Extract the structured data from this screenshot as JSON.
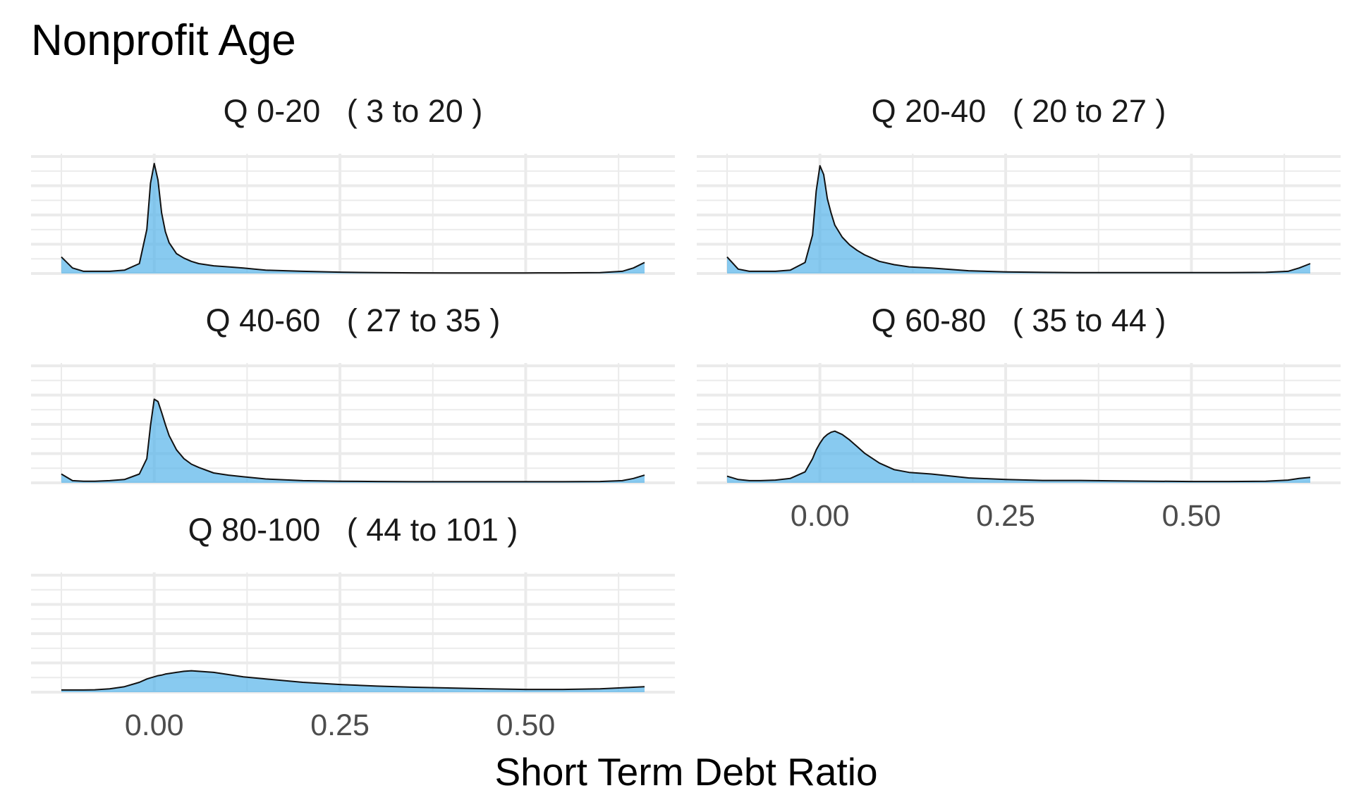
{
  "chart_data": {
    "type": "area",
    "title": "Nonprofit Age",
    "xlabel": "Short Term Debt Ratio",
    "ylabel": "",
    "xlim": [
      -0.125,
      0.66
    ],
    "ylim": [
      0,
      1
    ],
    "x_ticks": [
      "0.00",
      "0.25",
      "0.50"
    ],
    "x_tick_values": [
      0,
      0.25,
      0.5
    ],
    "fill_color": "#56b4e9",
    "line_color": "#111111",
    "grid": true,
    "legend": "none",
    "x": [
      -0.125,
      -0.11,
      -0.095,
      -0.08,
      -0.06,
      -0.04,
      -0.02,
      -0.01,
      -0.005,
      0,
      0.005,
      0.01,
      0.015,
      0.02,
      0.03,
      0.04,
      0.05,
      0.06,
      0.08,
      0.1,
      0.12,
      0.15,
      0.2,
      0.25,
      0.3,
      0.35,
      0.4,
      0.45,
      0.5,
      0.55,
      0.6,
      0.63,
      0.645,
      0.66
    ],
    "series": [
      {
        "name": "Q 0-20   ( 3 to 20 )",
        "values": [
          0.15,
          0.05,
          0.02,
          0.02,
          0.02,
          0.03,
          0.09,
          0.4,
          0.82,
          1.0,
          0.85,
          0.55,
          0.38,
          0.28,
          0.18,
          0.14,
          0.11,
          0.09,
          0.07,
          0.06,
          0.05,
          0.03,
          0.02,
          0.012,
          0.008,
          0.006,
          0.005,
          0.005,
          0.005,
          0.006,
          0.008,
          0.02,
          0.05,
          0.1
        ]
      },
      {
        "name": "Q 20-40   ( 20 to 27 )",
        "values": [
          0.15,
          0.04,
          0.02,
          0.02,
          0.02,
          0.03,
          0.1,
          0.35,
          0.75,
          0.98,
          0.9,
          0.68,
          0.55,
          0.44,
          0.33,
          0.26,
          0.21,
          0.17,
          0.11,
          0.08,
          0.06,
          0.05,
          0.025,
          0.015,
          0.01,
          0.008,
          0.008,
          0.008,
          0.008,
          0.008,
          0.01,
          0.02,
          0.05,
          0.09
        ]
      },
      {
        "name": "Q 40-60   ( 27 to 35 )",
        "values": [
          0.08,
          0.02,
          0.015,
          0.015,
          0.02,
          0.03,
          0.08,
          0.22,
          0.52,
          0.76,
          0.74,
          0.64,
          0.53,
          0.43,
          0.3,
          0.22,
          0.17,
          0.14,
          0.09,
          0.07,
          0.055,
          0.035,
          0.02,
          0.015,
          0.012,
          0.01,
          0.01,
          0.01,
          0.01,
          0.01,
          0.012,
          0.02,
          0.04,
          0.07
        ]
      },
      {
        "name": "Q 60-80   ( 35 to 44 )",
        "values": [
          0.06,
          0.03,
          0.02,
          0.02,
          0.025,
          0.04,
          0.1,
          0.22,
          0.3,
          0.36,
          0.41,
          0.44,
          0.46,
          0.47,
          0.44,
          0.39,
          0.33,
          0.27,
          0.18,
          0.12,
          0.095,
          0.08,
          0.045,
          0.03,
          0.022,
          0.022,
          0.018,
          0.015,
          0.012,
          0.012,
          0.015,
          0.025,
          0.04,
          0.05
        ]
      },
      {
        "name": "Q 80-100   ( 44 to 101 )",
        "values": [
          0.02,
          0.02,
          0.02,
          0.022,
          0.03,
          0.05,
          0.09,
          0.12,
          0.13,
          0.14,
          0.15,
          0.155,
          0.165,
          0.17,
          0.18,
          0.19,
          0.195,
          0.19,
          0.18,
          0.16,
          0.14,
          0.12,
          0.09,
          0.07,
          0.055,
          0.045,
          0.038,
          0.03,
          0.025,
          0.025,
          0.03,
          0.04,
          0.045,
          0.05
        ]
      }
    ]
  }
}
